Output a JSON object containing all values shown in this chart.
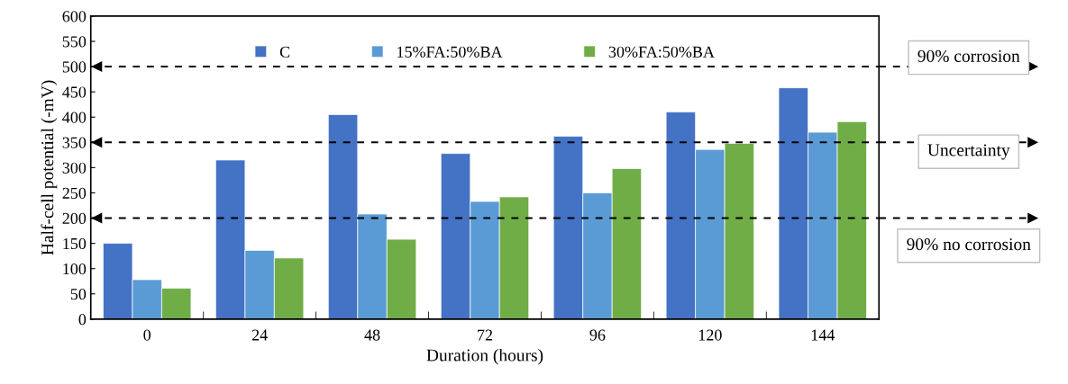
{
  "chart_data": {
    "type": "bar",
    "xlabel": "Duration (hours)",
    "ylabel": "Half-cell potential (-mV)",
    "categories": [
      "0",
      "24",
      "48",
      "72",
      "96",
      "120",
      "144"
    ],
    "series": [
      {
        "name": "C",
        "color": "#4472c4",
        "values": [
          150,
          315,
          405,
          328,
          362,
          410,
          458
        ]
      },
      {
        "name": "15%FA:50%BA",
        "color": "#5b9bd5",
        "values": [
          78,
          136,
          208,
          233,
          250,
          336,
          370
        ]
      },
      {
        "name": "30%FA:50%BA",
        "color": "#70ad47",
        "values": [
          61,
          121,
          158,
          242,
          298,
          348,
          391
        ]
      }
    ],
    "ylim": [
      0,
      600
    ],
    "yticks": [
      0,
      50,
      100,
      150,
      200,
      250,
      300,
      350,
      400,
      450,
      500,
      550,
      600
    ],
    "ref_lines": [
      {
        "axis": "y",
        "value": 500,
        "color": "#000000",
        "line_style": "dashed"
      },
      {
        "axis": "y",
        "value": 350,
        "color": "#000000",
        "line_style": "dashed"
      },
      {
        "axis": "y",
        "value": 200,
        "color": "#000000",
        "line_style": "dashed"
      }
    ],
    "annotations": [
      "90% corrosion",
      "Uncertainty",
      "90% no corrosion"
    ],
    "legend": "top",
    "grid": false
  }
}
